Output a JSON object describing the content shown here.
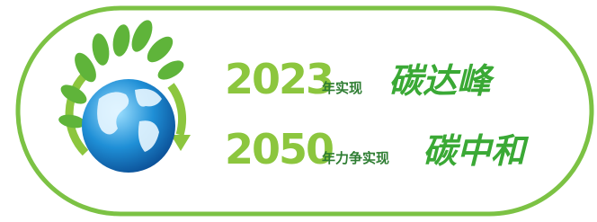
{
  "lines": [
    {
      "year": "2023",
      "text": "年实现",
      "goal": "碳达峰"
    },
    {
      "year": "2050",
      "text": "年力争实现",
      "goal": "碳中和"
    }
  ]
}
